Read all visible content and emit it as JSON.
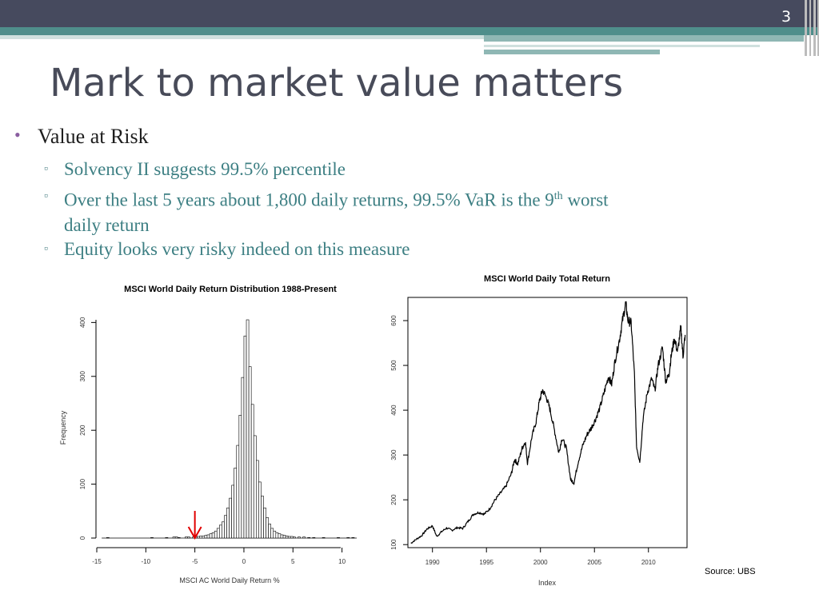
{
  "slide": {
    "number": "3",
    "title": "Mark to market value matters",
    "bullet": "Value at Risk",
    "sub_bullets": [
      "Solvency II suggests 99.5% percentile",
      "Over the last 5 years about 1,800 daily returns, 99.5% VaR is the 9",
      "th",
      "worst",
      "daily return",
      "Equity looks very risky indeed on this measure"
    ],
    "source": "Source: UBS"
  },
  "chart_data": [
    {
      "type": "bar",
      "title": "MSCI World Daily Return Distribution 1988-Present",
      "xlabel": "MSCI AC World Daily Return %",
      "ylabel": "Frequency",
      "xlim": [
        -15,
        11.5
      ],
      "ylim": [
        0,
        405
      ],
      "xticks": [
        "-15",
        "-10",
        "-5",
        "0",
        "5",
        "10"
      ],
      "yticks": [
        "0",
        "100",
        "200",
        "300",
        "400"
      ],
      "bin_width": 0.25,
      "bins": [
        [
          -14,
          1
        ],
        [
          -9.5,
          1
        ],
        [
          -8,
          1
        ],
        [
          -7.25,
          2
        ],
        [
          -7,
          2
        ],
        [
          -6.75,
          1
        ],
        [
          -6,
          2
        ],
        [
          -5.75,
          2
        ],
        [
          -5.25,
          2
        ],
        [
          -5,
          3
        ],
        [
          -4.75,
          3
        ],
        [
          -4.5,
          4
        ],
        [
          -4.25,
          4
        ],
        [
          -4,
          5
        ],
        [
          -3.75,
          6
        ],
        [
          -3.5,
          8
        ],
        [
          -3.25,
          10
        ],
        [
          -3,
          13
        ],
        [
          -2.75,
          18
        ],
        [
          -2.5,
          24
        ],
        [
          -2.25,
          30
        ],
        [
          -2,
          42
        ],
        [
          -1.75,
          56
        ],
        [
          -1.5,
          74
        ],
        [
          -1.25,
          98
        ],
        [
          -1,
          130
        ],
        [
          -0.75,
          172
        ],
        [
          -0.5,
          228
        ],
        [
          -0.25,
          298
        ],
        [
          0,
          375
        ],
        [
          0.25,
          405
        ],
        [
          0.5,
          318
        ],
        [
          0.75,
          248
        ],
        [
          1,
          190
        ],
        [
          1.25,
          144
        ],
        [
          1.5,
          104
        ],
        [
          1.75,
          78
        ],
        [
          2,
          56
        ],
        [
          2.25,
          38
        ],
        [
          2.5,
          26
        ],
        [
          2.75,
          18
        ],
        [
          3,
          13
        ],
        [
          3.25,
          10
        ],
        [
          3.5,
          8
        ],
        [
          3.75,
          6
        ],
        [
          4,
          5
        ],
        [
          4.25,
          4
        ],
        [
          4.5,
          3
        ],
        [
          4.75,
          3
        ],
        [
          5,
          2
        ],
        [
          5.5,
          2
        ],
        [
          6,
          2
        ],
        [
          6.5,
          1
        ],
        [
          7,
          1
        ],
        [
          8,
          1
        ],
        [
          9.5,
          1
        ],
        [
          10.5,
          1
        ],
        [
          11,
          1
        ]
      ],
      "marker": {
        "type": "arrow",
        "x": -5,
        "color": "#e00000"
      }
    },
    {
      "type": "line",
      "title": "MSCI World Daily Total Return",
      "xlabel": "Index",
      "ylabel": "",
      "xlim": [
        1987.8,
        2013.5
      ],
      "ylim": [
        95,
        650
      ],
      "xticks": [
        "1990",
        "1995",
        "2000",
        "2005",
        "2010"
      ],
      "yticks": [
        "100",
        "200",
        "300",
        "400",
        "500",
        "600"
      ],
      "points": [
        [
          1988.0,
          103
        ],
        [
          1988.5,
          112
        ],
        [
          1989.0,
          120
        ],
        [
          1989.5,
          135
        ],
        [
          1990.0,
          142
        ],
        [
          1990.4,
          118
        ],
        [
          1990.8,
          128
        ],
        [
          1991.3,
          137
        ],
        [
          1991.8,
          132
        ],
        [
          1992.3,
          138
        ],
        [
          1992.8,
          136
        ],
        [
          1993.3,
          152
        ],
        [
          1993.8,
          168
        ],
        [
          1994.3,
          172
        ],
        [
          1994.8,
          168
        ],
        [
          1995.3,
          180
        ],
        [
          1995.8,
          200
        ],
        [
          1996.3,
          215
        ],
        [
          1996.8,
          230
        ],
        [
          1997.3,
          258
        ],
        [
          1997.6,
          290
        ],
        [
          1997.9,
          280
        ],
        [
          1998.3,
          315
        ],
        [
          1998.6,
          330
        ],
        [
          1998.8,
          282
        ],
        [
          1999.2,
          340
        ],
        [
          1999.6,
          375
        ],
        [
          1999.9,
          420
        ],
        [
          2000.2,
          445
        ],
        [
          2000.6,
          425
        ],
        [
          2000.9,
          400
        ],
        [
          2001.3,
          355
        ],
        [
          2001.7,
          305
        ],
        [
          2002.0,
          338
        ],
        [
          2002.4,
          315
        ],
        [
          2002.8,
          245
        ],
        [
          2003.1,
          238
        ],
        [
          2003.5,
          285
        ],
        [
          2003.9,
          320
        ],
        [
          2004.3,
          345
        ],
        [
          2004.7,
          360
        ],
        [
          2005.1,
          380
        ],
        [
          2005.5,
          405
        ],
        [
          2005.9,
          440
        ],
        [
          2006.3,
          475
        ],
        [
          2006.6,
          458
        ],
        [
          2006.9,
          510
        ],
        [
          2007.3,
          555
        ],
        [
          2007.6,
          600
        ],
        [
          2007.9,
          640
        ],
        [
          2008.1,
          600
        ],
        [
          2008.4,
          595
        ],
        [
          2008.7,
          480
        ],
        [
          2008.9,
          320
        ],
        [
          2009.2,
          285
        ],
        [
          2009.5,
          380
        ],
        [
          2009.9,
          440
        ],
        [
          2010.3,
          470
        ],
        [
          2010.6,
          445
        ],
        [
          2010.9,
          500
        ],
        [
          2011.3,
          540
        ],
        [
          2011.6,
          465
        ],
        [
          2011.9,
          478
        ],
        [
          2012.1,
          520
        ],
        [
          2012.4,
          560
        ],
        [
          2012.7,
          530
        ],
        [
          2013.0,
          585
        ],
        [
          2013.2,
          520
        ],
        [
          2013.4,
          568
        ]
      ]
    }
  ]
}
